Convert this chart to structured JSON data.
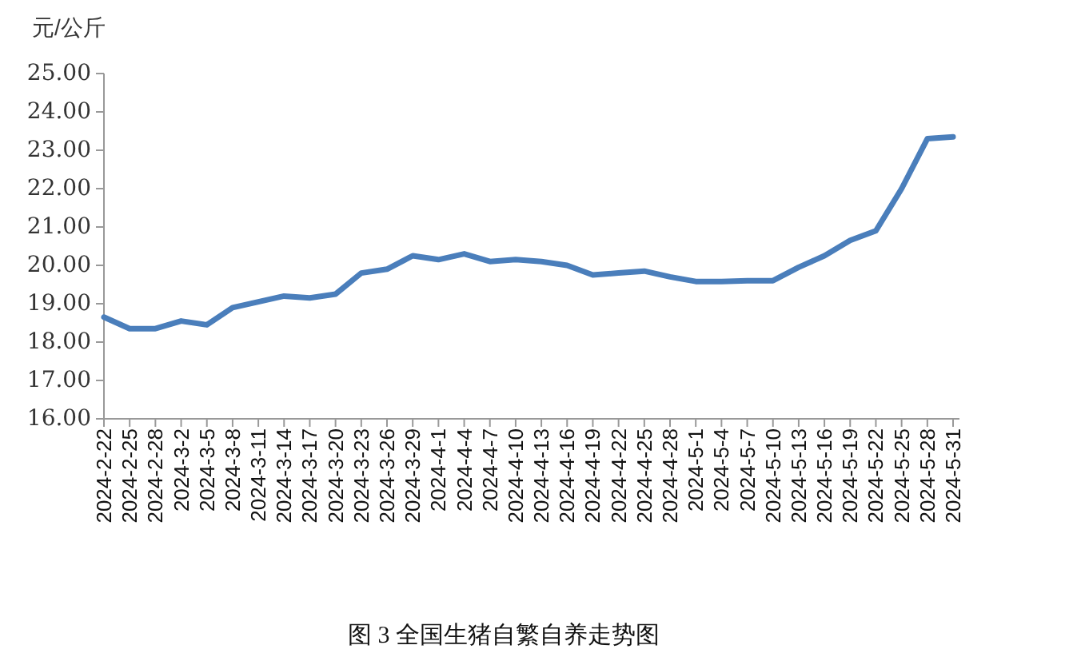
{
  "chart_data": {
    "type": "line",
    "title": "图 3 全国生猪自繁自养走势图",
    "ylabel": "元/公斤",
    "categories": [
      "2024-2-22",
      "2024-2-25",
      "2024-2-28",
      "2024-3-2",
      "2024-3-5",
      "2024-3-8",
      "2024-3-11",
      "2024-3-14",
      "2024-3-17",
      "2024-3-20",
      "2024-3-23",
      "2024-3-26",
      "2024-3-29",
      "2024-4-1",
      "2024-4-4",
      "2024-4-7",
      "2024-4-10",
      "2024-4-13",
      "2024-4-16",
      "2024-4-19",
      "2024-4-22",
      "2024-4-25",
      "2024-4-28",
      "2024-5-1",
      "2024-5-4",
      "2024-5-7",
      "2024-5-10",
      "2024-5-13",
      "2024-5-16",
      "2024-5-19",
      "2024-5-22",
      "2024-5-25",
      "2024-5-28",
      "2024-5-31"
    ],
    "series": [
      {
        "color": "#4a7ebb",
        "values": [
          18.65,
          18.35,
          18.35,
          18.55,
          18.45,
          18.9,
          19.05,
          19.2,
          19.15,
          19.25,
          19.8,
          19.9,
          20.25,
          20.15,
          20.3,
          20.1,
          20.15,
          20.1,
          20.0,
          19.75,
          19.8,
          19.85,
          19.7,
          19.58,
          19.58,
          19.6,
          19.6,
          19.95,
          20.25,
          20.65,
          20.9,
          22.0,
          23.3,
          23.35
        ]
      }
    ],
    "ylim": [
      16,
      25
    ],
    "yticks": [
      {
        "value": 16,
        "label": "16.00"
      },
      {
        "value": 17,
        "label": "17.00"
      },
      {
        "value": 18,
        "label": "18.00"
      },
      {
        "value": 19,
        "label": "19.00"
      },
      {
        "value": 20,
        "label": "20.00"
      },
      {
        "value": 21,
        "label": "21.00"
      },
      {
        "value": 22,
        "label": "22.00"
      },
      {
        "value": 23,
        "label": "23.00"
      },
      {
        "value": 24,
        "label": "24.00"
      },
      {
        "value": 25,
        "label": "25.00"
      }
    ],
    "marker": "none",
    "line_style": "solid"
  }
}
